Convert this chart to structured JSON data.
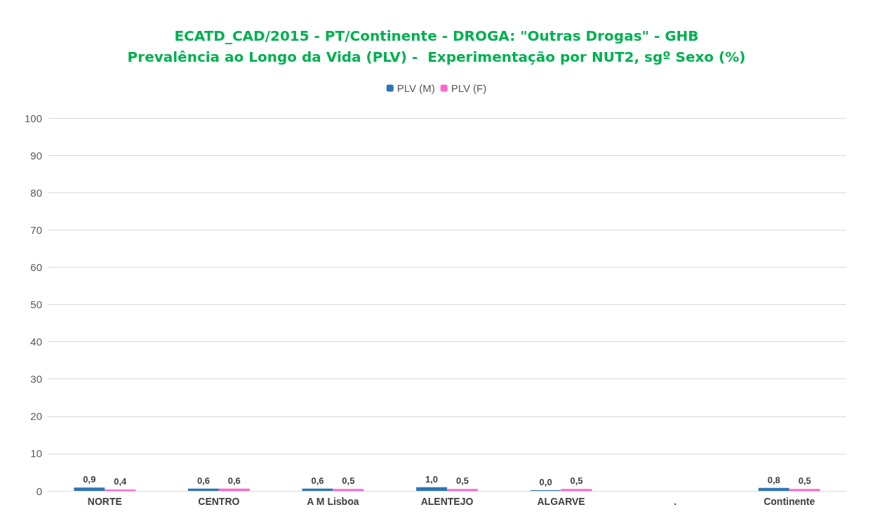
{
  "chart_data": {
    "type": "bar",
    "title": "ECATD_CAD/2015 - PT/Continente - DROGA: \"Outras Drogas\" - GHB",
    "subtitle": "Prevalência ao Longo da Vida (PLV) -  Experimentação por NUT2, sgº Sexo (%)",
    "categories": [
      "NORTE",
      "CENTRO",
      "A M Lisboa",
      "ALENTEJO",
      "ALGARVE",
      ".",
      "Continente"
    ],
    "series": [
      {
        "name": "PLV (M)",
        "color": "#2e75b6",
        "values": [
          0.9,
          0.6,
          0.6,
          1.0,
          0.0,
          null,
          0.8
        ],
        "value_labels": [
          "0,9",
          "0,6",
          "0,6",
          "1,0",
          "0,0",
          null,
          "0,8"
        ]
      },
      {
        "name": "PLV (F)",
        "color": "#ff66cc",
        "values": [
          0.4,
          0.6,
          0.5,
          0.5,
          0.5,
          null,
          0.5
        ],
        "value_labels": [
          "0,4",
          "0,6",
          "0,5",
          "0,5",
          "0,5",
          null,
          "0,5"
        ]
      }
    ],
    "ylim": [
      0,
      100
    ],
    "yticks": [
      0,
      10,
      20,
      30,
      40,
      50,
      60,
      70,
      80,
      90,
      100
    ],
    "grid": "y",
    "legend": "top"
  }
}
